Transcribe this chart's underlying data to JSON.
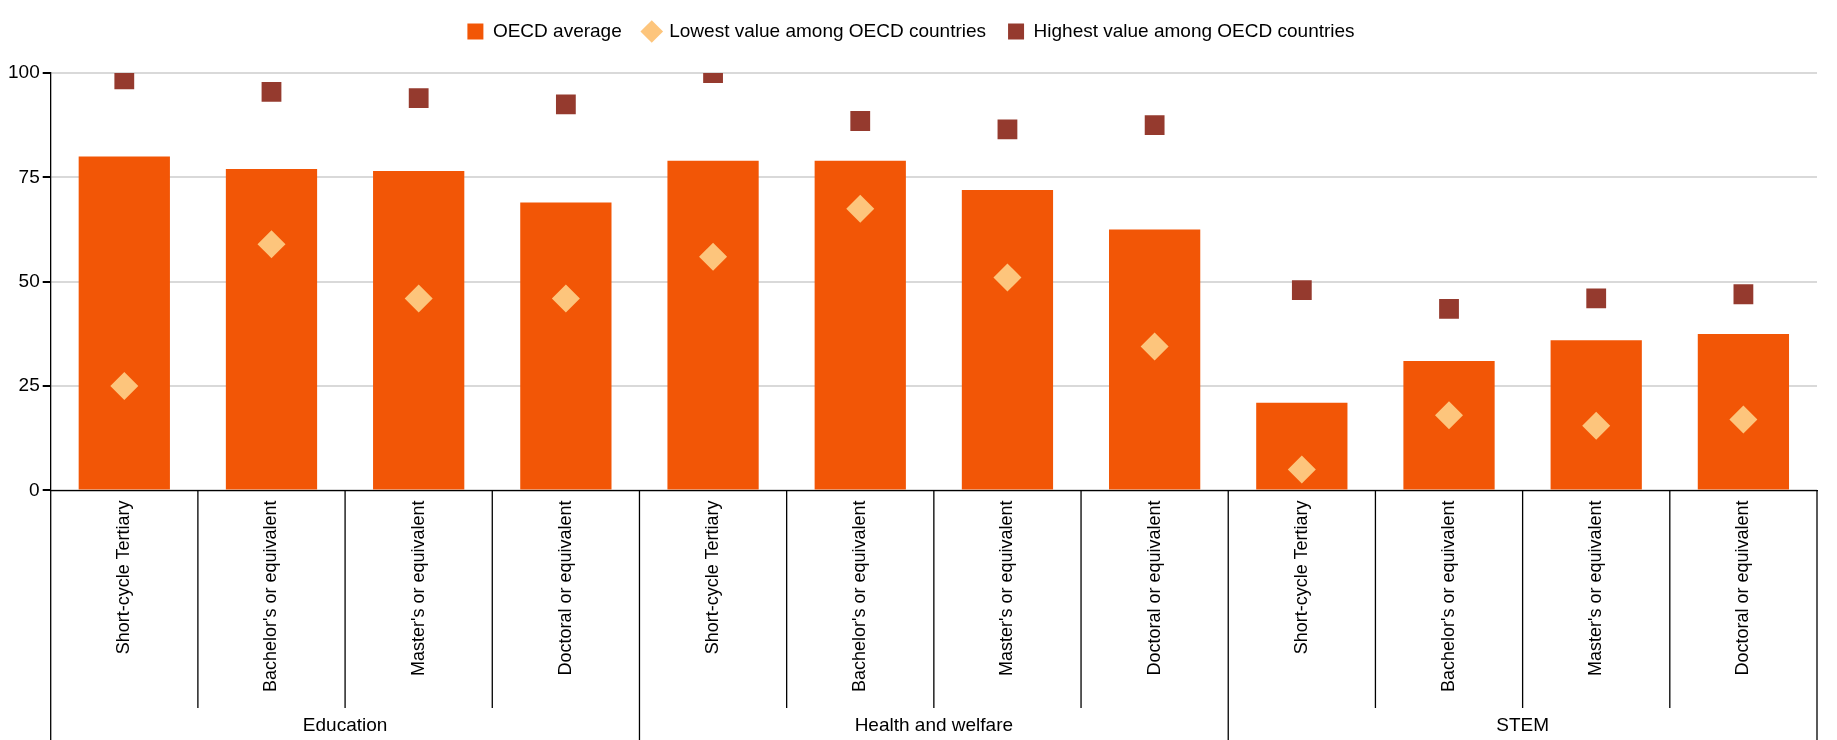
{
  "chart_data": {
    "type": "bar",
    "categories": [
      "Short-cycle Tertiary",
      "Bachelor's or equivalent",
      "Master's or equivalent",
      "Doctoral or equivalent",
      "Short-cycle Tertiary",
      "Bachelor's or equivalent",
      "Master's or equivalent",
      "Doctoral or equivalent",
      "Short-cycle Tertiary",
      "Bachelor's or equivalent",
      "Master's or equivalent",
      "Doctoral or equivalent"
    ],
    "series": [
      {
        "name": "OECD average",
        "color": "#f25606",
        "values": [
          80,
          77,
          76.5,
          69,
          79,
          79,
          72,
          62.5,
          21,
          31,
          36,
          37.5
        ]
      },
      {
        "name": "Lowest value among OECD countries",
        "type": "scatter",
        "marker": "diamond",
        "color": "#fdc57c",
        "values": [
          25,
          59,
          46,
          46,
          56,
          67.5,
          51,
          34.5,
          5,
          18,
          15.5,
          17
        ]
      },
      {
        "name": "Highest value among OECD countries",
        "type": "scatter",
        "marker": "square",
        "color": "#953a2e",
        "values": [
          98.5,
          95.5,
          94,
          92.5,
          100,
          88.5,
          86.5,
          87.5,
          48,
          43.5,
          46,
          47
        ]
      }
    ],
    "ylim": [
      0,
      100
    ],
    "yticks": [
      0,
      25,
      50,
      75,
      100
    ],
    "grid": "y",
    "legend": "top",
    "annotations": [
      "Education",
      "Health and welfare",
      "STEM"
    ]
  }
}
